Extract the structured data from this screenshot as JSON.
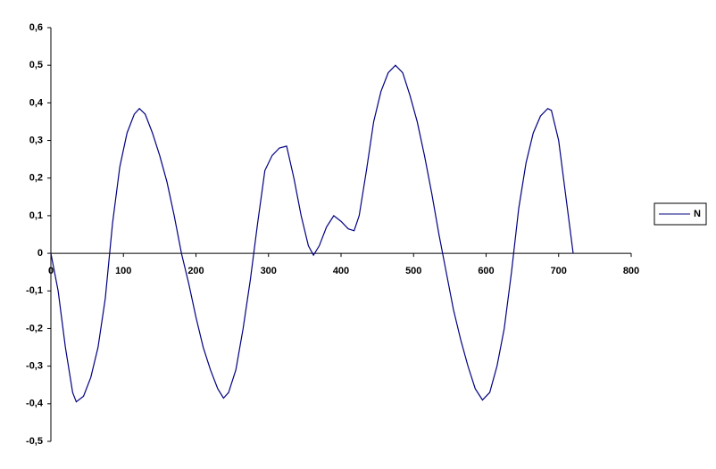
{
  "chart_data": {
    "type": "line",
    "x": [
      0,
      10,
      20,
      30,
      35,
      45,
      55,
      65,
      75,
      85,
      95,
      105,
      115,
      122,
      130,
      140,
      150,
      160,
      170,
      180,
      190,
      200,
      210,
      220,
      230,
      238,
      245,
      255,
      265,
      275,
      285,
      295,
      305,
      315,
      325,
      335,
      345,
      355,
      362,
      370,
      380,
      390,
      400,
      410,
      418,
      425,
      435,
      445,
      455,
      465,
      475,
      485,
      495,
      505,
      515,
      525,
      535,
      545,
      555,
      565,
      575,
      585,
      595,
      605,
      615,
      625,
      635,
      645,
      655,
      665,
      675,
      685,
      690,
      700,
      710,
      720
    ],
    "series": [
      {
        "name": "N",
        "color": "#000080",
        "values": [
          0,
          -0.1,
          -0.25,
          -0.37,
          -0.395,
          -0.38,
          -0.33,
          -0.25,
          -0.12,
          0.08,
          0.23,
          0.32,
          0.37,
          0.385,
          0.37,
          0.32,
          0.26,
          0.19,
          0.1,
          0,
          -0.08,
          -0.17,
          -0.25,
          -0.31,
          -0.36,
          -0.385,
          -0.37,
          -0.31,
          -0.2,
          -0.07,
          0.08,
          0.22,
          0.26,
          0.28,
          0.285,
          0.2,
          0.1,
          0.02,
          -0.005,
          0.02,
          0.07,
          0.1,
          0.085,
          0.065,
          0.06,
          0.1,
          0.22,
          0.35,
          0.43,
          0.48,
          0.5,
          0.48,
          0.42,
          0.35,
          0.26,
          0.16,
          0.05,
          -0.05,
          -0.15,
          -0.23,
          -0.3,
          -0.36,
          -0.39,
          -0.37,
          -0.3,
          -0.2,
          -0.05,
          0.12,
          0.24,
          0.32,
          0.365,
          0.385,
          0.38,
          0.3,
          0.15,
          0
        ]
      }
    ],
    "xlim": [
      0,
      800
    ],
    "xticks": [
      0,
      100,
      200,
      300,
      400,
      500,
      600,
      700,
      800
    ],
    "ylim": [
      -0.5,
      0.6
    ],
    "yticks": [
      {
        "value": 0.6,
        "label": "0,6"
      },
      {
        "value": 0.5,
        "label": "0,5"
      },
      {
        "value": 0.4,
        "label": "0,4"
      },
      {
        "value": 0.3,
        "label": "0,3"
      },
      {
        "value": 0.2,
        "label": "0,2"
      },
      {
        "value": 0.1,
        "label": "0,1"
      },
      0,
      {
        "value": -0.1,
        "label": "-0,1"
      },
      {
        "value": -0.2,
        "label": "-0,2"
      },
      {
        "value": -0.3,
        "label": "-0,3"
      },
      {
        "value": -0.4,
        "label": "-0,4"
      },
      {
        "value": -0.5,
        "label": "-0,5"
      }
    ],
    "legend": "right"
  }
}
